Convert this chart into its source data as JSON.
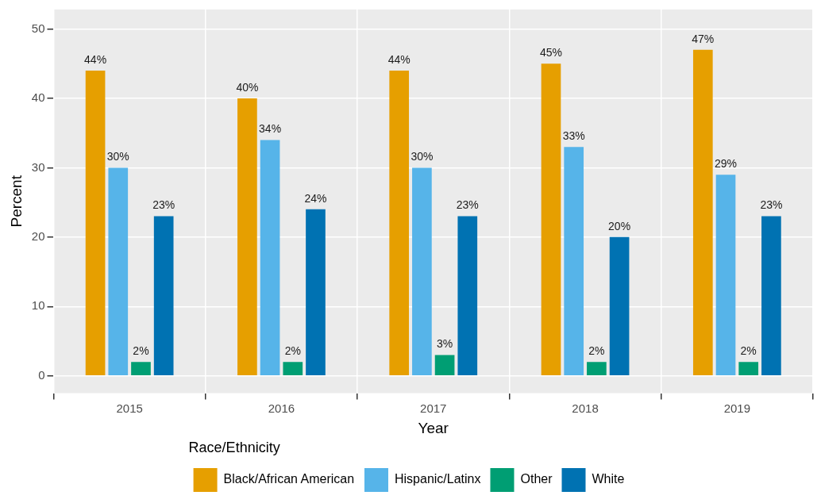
{
  "chart_data": {
    "type": "bar",
    "xlabel": "Year",
    "ylabel": "Percent",
    "legend_title": "Race/Ethnicity",
    "legend": "bottom",
    "grid": true,
    "categories": [
      "2015",
      "2016",
      "2017",
      "2018",
      "2019"
    ],
    "ylim": [
      -2.5,
      52.8
    ],
    "yticks": [
      0,
      10,
      20,
      30,
      40,
      50
    ],
    "series": [
      {
        "name": "Black/African American",
        "color": "#e69f00",
        "values": [
          44,
          40,
          44,
          45,
          47
        ],
        "value_labels": [
          "44%",
          "40%",
          "44%",
          "45%",
          "47%"
        ]
      },
      {
        "name": "Hispanic/Latinx",
        "color": "#56b4e9",
        "values": [
          30,
          34,
          30,
          33,
          29
        ],
        "value_labels": [
          "30%",
          "34%",
          "30%",
          "33%",
          "29%"
        ]
      },
      {
        "name": "Other",
        "color": "#009e73",
        "values": [
          2,
          2,
          3,
          2,
          2
        ],
        "value_labels": [
          "2%",
          "2%",
          "3%",
          "2%",
          "2%"
        ]
      },
      {
        "name": "White",
        "color": "#0072b2",
        "values": [
          23,
          24,
          23,
          20,
          23
        ],
        "value_labels": [
          "23%",
          "24%",
          "23%",
          "20%",
          "23%"
        ]
      }
    ]
  }
}
